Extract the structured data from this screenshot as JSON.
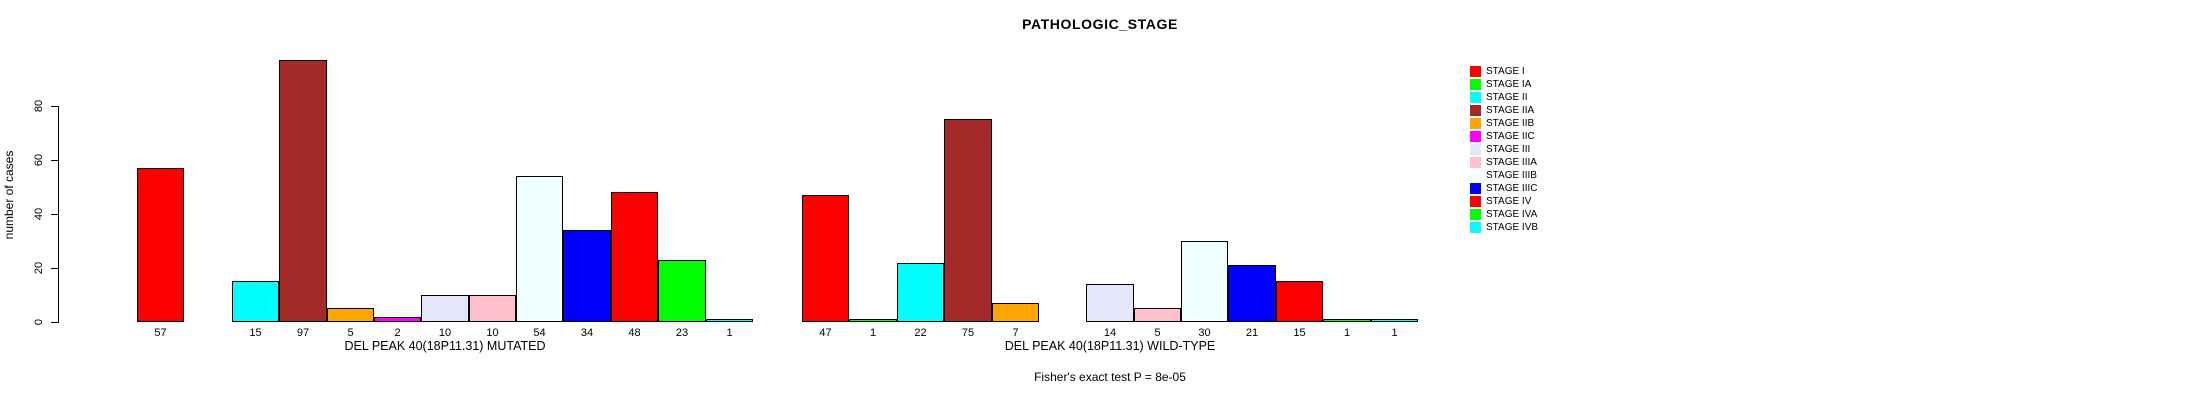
{
  "title": "PATHOLOGIC_STAGE",
  "footer": "Fisher's exact test P = 8e-05",
  "y_axis": {
    "label": "number of cases",
    "ticks": [
      0,
      20,
      40,
      60,
      80
    ]
  },
  "legend": {
    "position": "top-right",
    "items": [
      {
        "label": "STAGE I",
        "color": "#FF0000"
      },
      {
        "label": "STAGE IA",
        "color": "#00FF00"
      },
      {
        "label": "STAGE II",
        "color": "#00FFFF"
      },
      {
        "label": "STAGE IIA",
        "color": "#A52A2A"
      },
      {
        "label": "STAGE IIB",
        "color": "#FFA500"
      },
      {
        "label": "STAGE IIC",
        "color": "#FF00FF"
      },
      {
        "label": "STAGE III",
        "color": "#E6E6FA"
      },
      {
        "label": "STAGE IIIA",
        "color": "#FFC0CB"
      },
      {
        "label": "STAGE IIIB",
        "color": "#F0FFFF"
      },
      {
        "label": "STAGE IIIC",
        "color": "#0000FF"
      },
      {
        "label": "STAGE IV",
        "color": "#FF0000"
      },
      {
        "label": "STAGE IVA",
        "color": "#00FF00"
      },
      {
        "label": "STAGE IVB",
        "color": "#00FFFF"
      }
    ]
  },
  "chart_data": [
    {
      "type": "bar",
      "xlabel": "DEL PEAK 40(18P11.31) MUTATED",
      "categories": [
        "STAGE I",
        "STAGE IA",
        "STAGE II",
        "STAGE IIA",
        "STAGE IIB",
        "STAGE IIC",
        "STAGE III",
        "STAGE IIIA",
        "STAGE IIIB",
        "STAGE IIIC",
        "STAGE IV",
        "STAGE IVA",
        "STAGE IVB"
      ],
      "values": [
        57,
        0,
        15,
        97,
        5,
        2,
        10,
        10,
        54,
        34,
        48,
        23,
        1
      ],
      "bar_labels": [
        "57",
        "",
        "15",
        "97",
        "5",
        "2",
        "10",
        "10",
        "54",
        "34",
        "48",
        "23",
        "1"
      ],
      "ylim": [
        0,
        97
      ],
      "grid": false
    },
    {
      "type": "bar",
      "xlabel": "DEL PEAK 40(18P11.31) WILD-TYPE",
      "categories": [
        "STAGE I",
        "STAGE IA",
        "STAGE II",
        "STAGE IIA",
        "STAGE IIB",
        "STAGE IIC",
        "STAGE III",
        "STAGE IIIA",
        "STAGE IIIB",
        "STAGE IIIC",
        "STAGE IV",
        "STAGE IVA",
        "STAGE IVB"
      ],
      "values": [
        47,
        1,
        22,
        75,
        7,
        0,
        14,
        5,
        30,
        21,
        15,
        1,
        1
      ],
      "bar_labels": [
        "47",
        "1",
        "22",
        "75",
        "7",
        "",
        "14",
        "5",
        "30",
        "21",
        "15",
        "1",
        "1"
      ],
      "ylim": [
        0,
        75
      ],
      "grid": false
    }
  ]
}
